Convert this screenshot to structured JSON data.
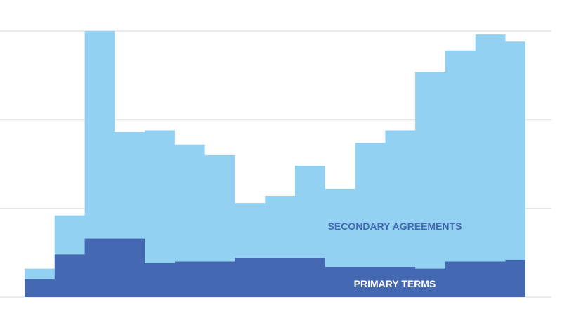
{
  "chart_data": {
    "type": "area",
    "stacked": true,
    "steps": [
      {
        "x": 0,
        "x2": 0.06,
        "primary": 1.0,
        "total": 1.6
      },
      {
        "x": 0.06,
        "x2": 0.12,
        "primary": 2.4,
        "total": 4.6
      },
      {
        "x": 0.12,
        "x2": 0.18,
        "primary": 3.3,
        "total": 15.0
      },
      {
        "x": 0.18,
        "x2": 0.24,
        "primary": 3.3,
        "total": 9.3
      },
      {
        "x": 0.24,
        "x2": 0.3,
        "primary": 1.9,
        "total": 9.4
      },
      {
        "x": 0.3,
        "x2": 0.36,
        "primary": 2.0,
        "total": 8.6
      },
      {
        "x": 0.36,
        "x2": 0.42,
        "primary": 2.0,
        "total": 8.0
      },
      {
        "x": 0.42,
        "x2": 0.48,
        "primary": 2.2,
        "total": 5.3
      },
      {
        "x": 0.48,
        "x2": 0.54,
        "primary": 2.2,
        "total": 5.7
      },
      {
        "x": 0.54,
        "x2": 0.6,
        "primary": 2.2,
        "total": 7.4
      },
      {
        "x": 0.6,
        "x2": 0.66,
        "primary": 1.7,
        "total": 6.1
      },
      {
        "x": 0.66,
        "x2": 0.72,
        "primary": 1.7,
        "total": 8.7
      },
      {
        "x": 0.72,
        "x2": 0.78,
        "primary": 1.7,
        "total": 9.4
      },
      {
        "x": 0.78,
        "x2": 0.84,
        "primary": 1.6,
        "total": 12.7
      },
      {
        "x": 0.84,
        "x2": 0.9,
        "primary": 2.0,
        "total": 13.9
      },
      {
        "x": 0.9,
        "x2": 0.96,
        "primary": 2.0,
        "total": 14.8
      },
      {
        "x": 0.96,
        "x2": 1.0,
        "primary": 2.1,
        "total": 14.4
      }
    ],
    "ylim": [
      0,
      15
    ],
    "gridlines": [
      0,
      5,
      10,
      15
    ],
    "grid": true,
    "legend": "none",
    "series": [
      {
        "key": "total",
        "name": "SECONDARY AGREEMENTS",
        "color": "#93d1f3"
      },
      {
        "key": "primary",
        "name": "PRIMARY TERMS",
        "color": "#4468b2"
      }
    ],
    "label_colors": {
      "secondary": "#4468b2",
      "primary": "#ffffff"
    }
  }
}
